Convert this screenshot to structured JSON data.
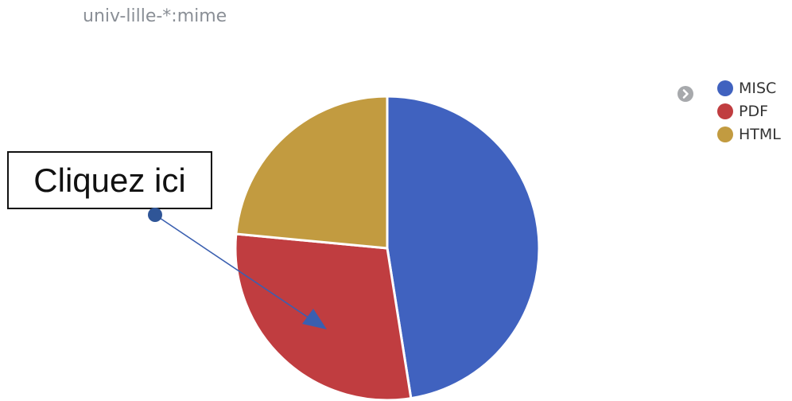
{
  "title": "univ-lille-*:mime",
  "chart_data": {
    "type": "pie",
    "title": "univ-lille-*:mime",
    "slices": [
      {
        "label": "MISC",
        "value": 47.5,
        "color": "#4062bf"
      },
      {
        "label": "PDF",
        "value": 29.0,
        "color": "#c03d40"
      },
      {
        "label": "HTML",
        "value": 23.5,
        "color": "#c29b40"
      }
    ],
    "legend_position": "top-right",
    "start_angle": "top",
    "direction": "clockwise"
  },
  "legend": {
    "toggle_icon": "chevron-right-circle-icon",
    "items": [
      {
        "label": "MISC",
        "color": "#4062bf"
      },
      {
        "label": "PDF",
        "color": "#c03d40"
      },
      {
        "label": "HTML",
        "color": "#c29b40"
      }
    ]
  },
  "annotation": {
    "text": "Cliquez ici",
    "arrow_color": "#3a5fb0"
  }
}
